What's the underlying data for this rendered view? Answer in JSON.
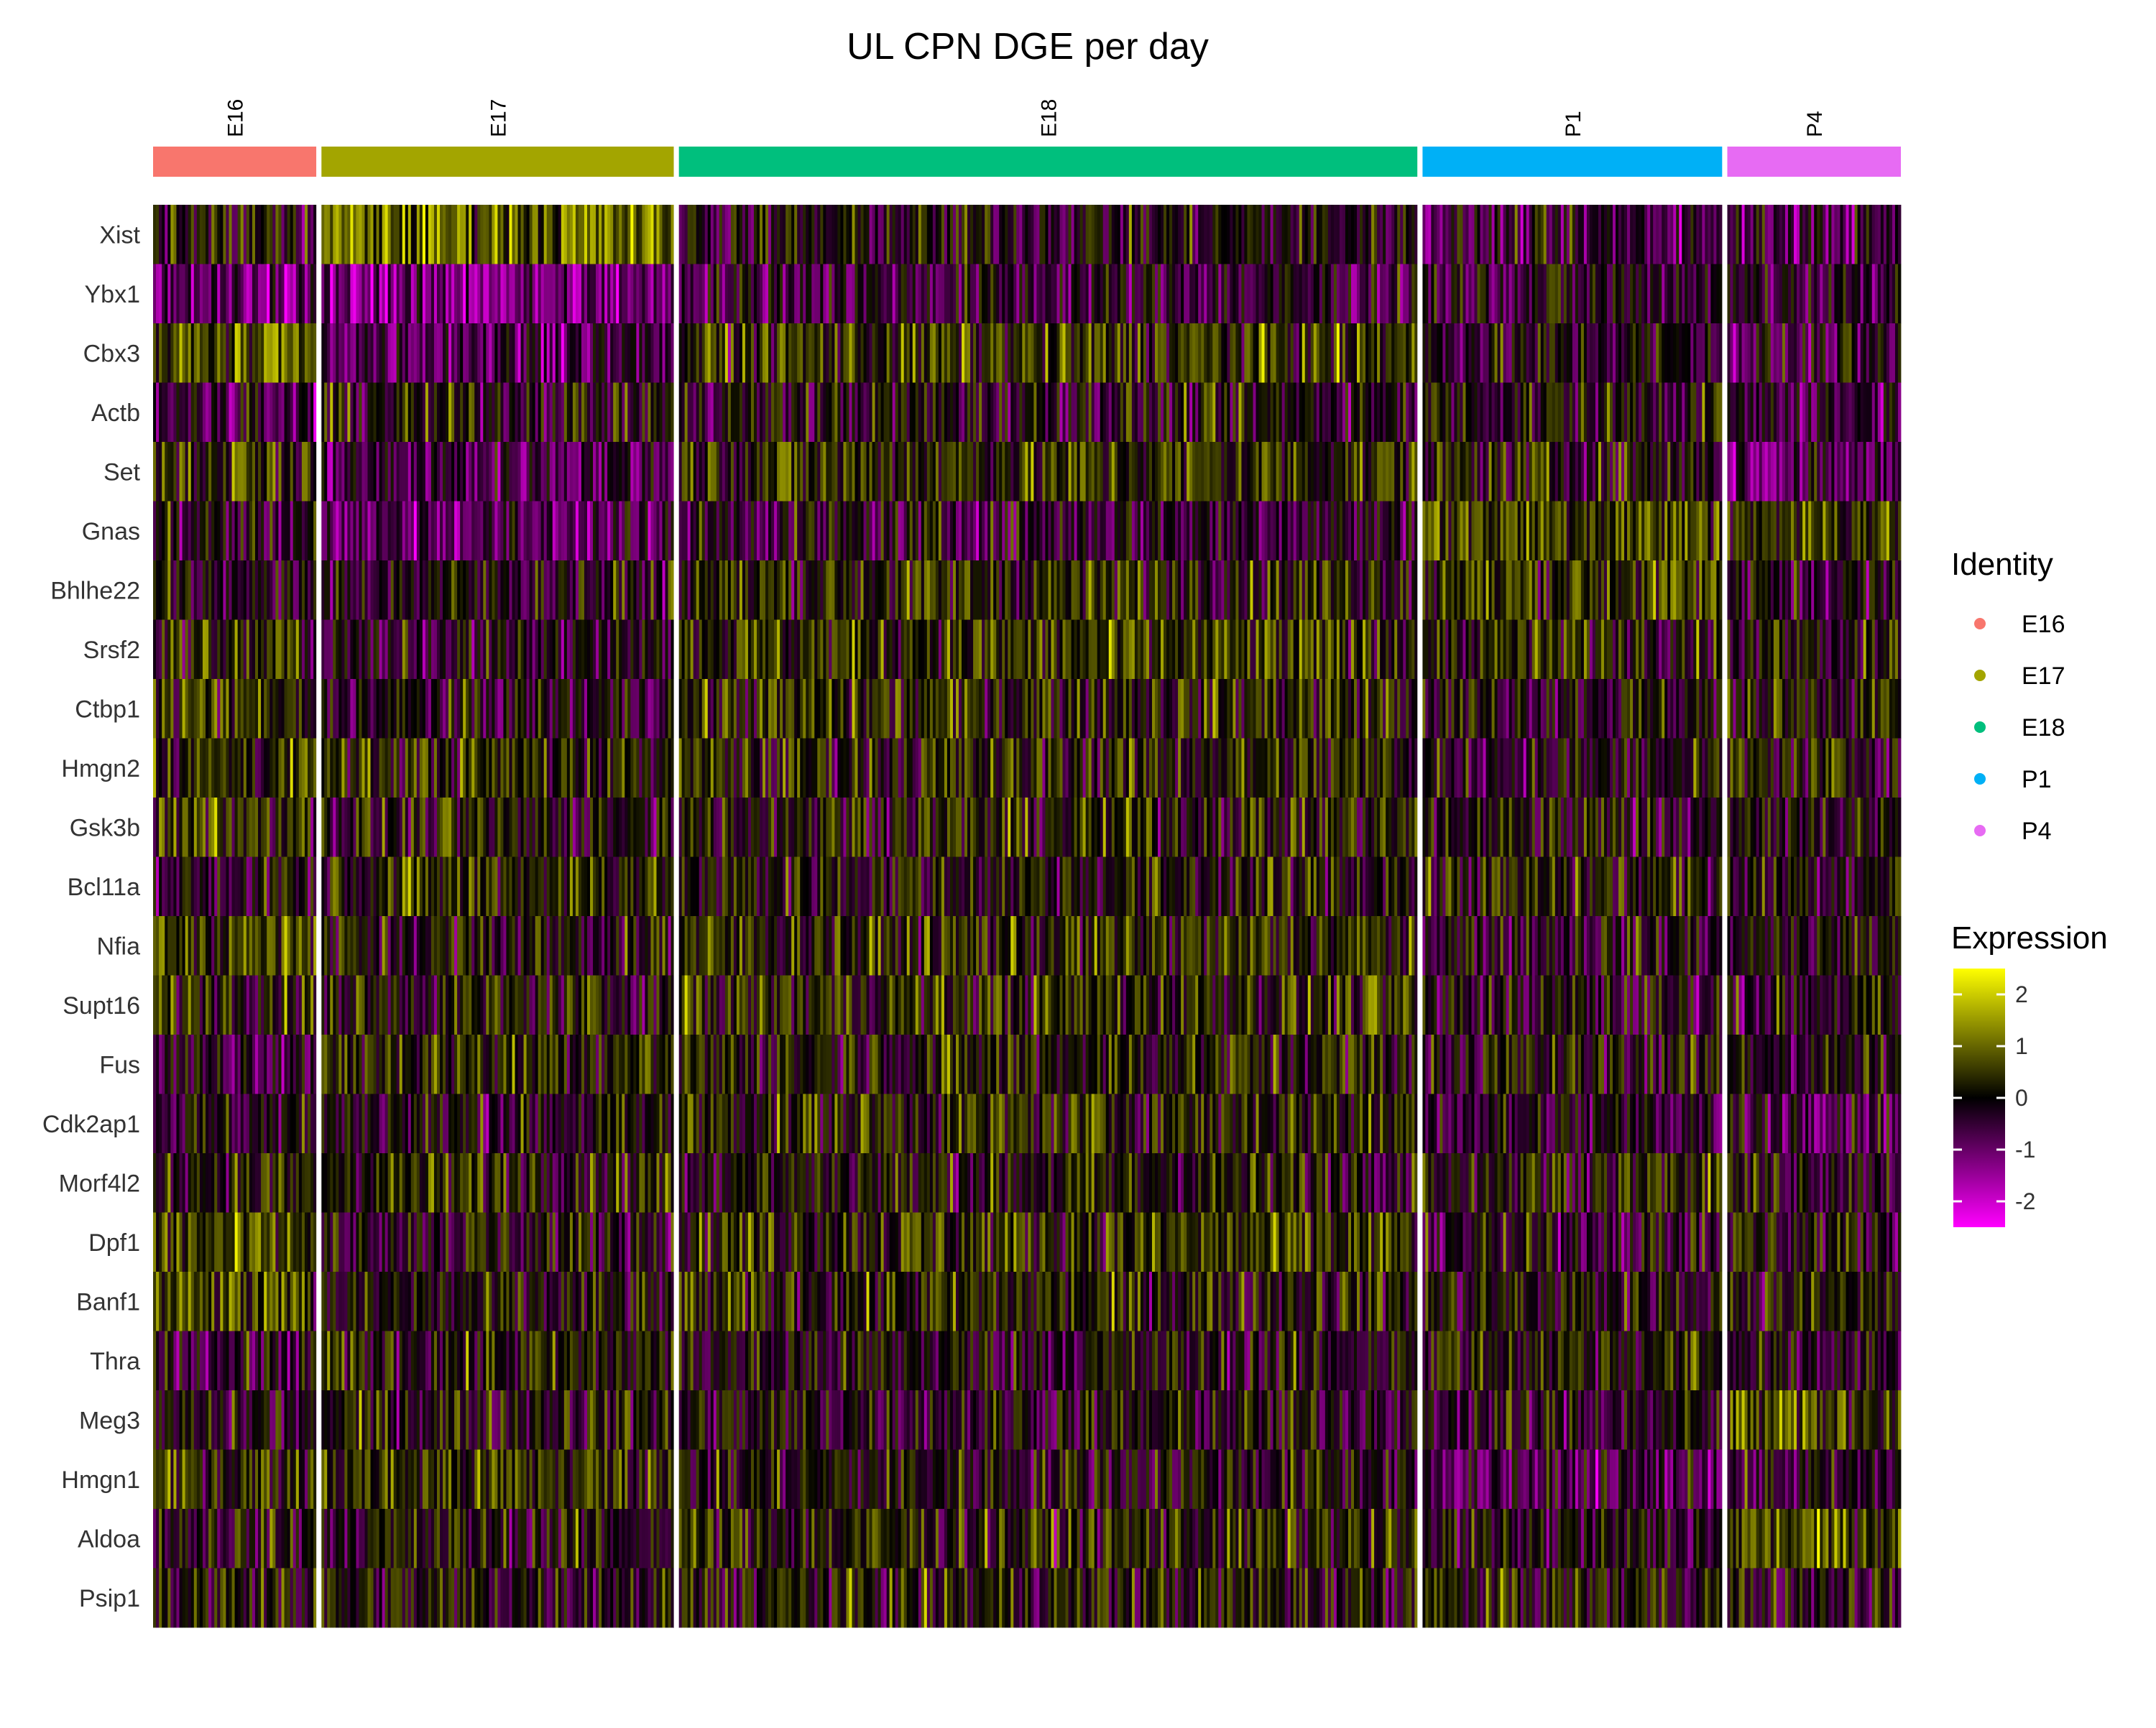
{
  "chart_data": {
    "type": "heatmap",
    "title": "UL CPN DGE per day",
    "identity_legend": {
      "title": "Identity",
      "entries": [
        {
          "label": "E16",
          "color": "#F8766D"
        },
        {
          "label": "E17",
          "color": "#A3A500"
        },
        {
          "label": "E18",
          "color": "#00BF7D"
        },
        {
          "label": "P1",
          "color": "#00B0F6"
        },
        {
          "label": "P4",
          "color": "#E76BF3"
        }
      ]
    },
    "groups": [
      {
        "label": "E16",
        "color": "#F8766D",
        "cell_fraction": 0.0945
      },
      {
        "label": "E17",
        "color": "#A3A500",
        "cell_fraction": 0.204
      },
      {
        "label": "E18",
        "color": "#00BF7D",
        "cell_fraction": 0.4275
      },
      {
        "label": "P1",
        "color": "#00B0F6",
        "cell_fraction": 0.1735
      },
      {
        "label": "P4",
        "color": "#E76BF3",
        "cell_fraction": 0.1005
      }
    ],
    "genes": [
      "Xist",
      "Ybx1",
      "Cbx3",
      "Actb",
      "Set",
      "Gnas",
      "Bhlhe22",
      "Srsf2",
      "Ctbp1",
      "Hmgn2",
      "Gsk3b",
      "Bcl11a",
      "Nfia",
      "Supt16",
      "Fus",
      "Cdk2ap1",
      "Morf4l2",
      "Dpf1",
      "Banf1",
      "Thra",
      "Meg3",
      "Hmgn1",
      "Aldoa",
      "Psip1"
    ],
    "mean_expression": [
      [
        0.0,
        1.0,
        -0.1,
        -0.5,
        -0.6
      ],
      [
        -0.8,
        -1.2,
        -0.4,
        -0.2,
        -0.3
      ],
      [
        0.6,
        -0.6,
        0.4,
        -0.2,
        -0.5
      ],
      [
        -0.6,
        0.0,
        -0.1,
        0.0,
        -0.4
      ],
      [
        0.4,
        -0.6,
        0.4,
        0.1,
        -0.8
      ],
      [
        -0.2,
        -0.8,
        -0.3,
        0.7,
        0.6
      ],
      [
        -0.2,
        -0.1,
        0.3,
        0.5,
        -0.3
      ],
      [
        0.3,
        -0.3,
        0.4,
        0.3,
        0.1
      ],
      [
        0.5,
        -0.2,
        0.3,
        0.0,
        0.2
      ],
      [
        0.3,
        0.3,
        0.2,
        -0.2,
        0.1
      ],
      [
        0.4,
        0.0,
        0.2,
        -0.1,
        0.0
      ],
      [
        -0.2,
        0.4,
        0.1,
        0.1,
        0.0
      ],
      [
        0.6,
        0.0,
        0.3,
        -0.1,
        0.0
      ],
      [
        0.4,
        0.1,
        0.3,
        -0.2,
        -0.1
      ],
      [
        -0.3,
        0.4,
        0.2,
        0.0,
        -0.1
      ],
      [
        -0.2,
        -0.1,
        0.3,
        -0.3,
        -0.3
      ],
      [
        0.2,
        0.3,
        0.1,
        0.2,
        0.0
      ],
      [
        0.5,
        0.0,
        0.4,
        -0.2,
        0.0
      ],
      [
        0.5,
        -0.1,
        0.2,
        0.0,
        0.1
      ],
      [
        -0.3,
        0.1,
        -0.1,
        0.2,
        -0.4
      ],
      [
        -0.2,
        0.1,
        -0.1,
        -0.2,
        0.6
      ],
      [
        0.4,
        0.4,
        0.0,
        -0.6,
        -0.4
      ],
      [
        0.0,
        0.0,
        0.2,
        -0.2,
        0.7
      ],
      [
        0.1,
        0.0,
        0.1,
        0.1,
        0.0
      ]
    ],
    "expression_legend": {
      "title": "Expression",
      "ticks": [
        2,
        1,
        0,
        -1,
        -2
      ],
      "tick_labels": [
        "2",
        "1",
        "0",
        "-1",
        "-2"
      ],
      "range": [
        -2.5,
        2.5
      ],
      "colors": {
        "low": "#FF00FF",
        "mid": "#000000",
        "high": "#FFFF00"
      }
    }
  }
}
